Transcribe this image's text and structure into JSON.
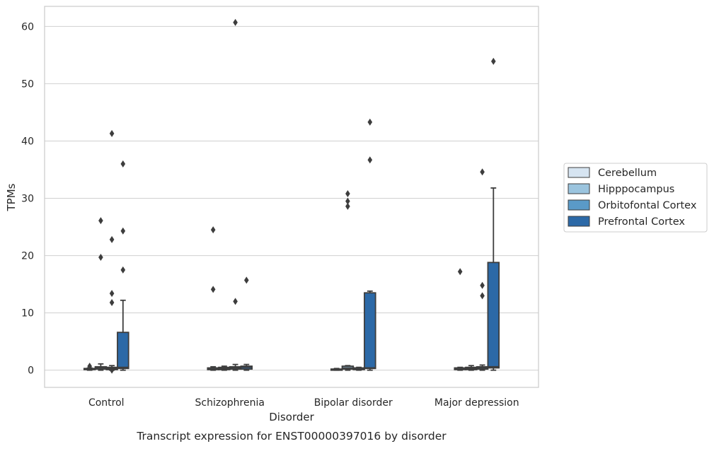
{
  "chart_data": {
    "type": "box",
    "xlabel": "Disorder",
    "ylabel": "TPMs",
    "caption": "Transcript expression for ENST00000397016 by disorder",
    "categories": [
      "Control",
      "Schizophrenia",
      "Bipolar disorder",
      "Major depression"
    ],
    "ylim": [
      -3,
      63.5
    ],
    "yticks": [
      0,
      10,
      20,
      30,
      40,
      50,
      60
    ],
    "grid": "horizontal",
    "legend_placement": "right",
    "series": [
      {
        "name": "Cerebellum",
        "color": "#d6e4f1",
        "boxes": [
          {
            "q1": 0.1,
            "median": 0.2,
            "q3": 0.3,
            "whisker_low": 0.0,
            "whisker_high": 0.4,
            "outliers": [
              0.7
            ]
          },
          {
            "q1": 0.1,
            "median": 0.2,
            "q3": 0.4,
            "whisker_low": 0.0,
            "whisker_high": 0.6,
            "outliers": [
              14.1,
              24.5
            ]
          },
          {
            "q1": 0.0,
            "median": 0.1,
            "q3": 0.2,
            "whisker_low": 0.0,
            "whisker_high": 0.3,
            "outliers": []
          },
          {
            "q1": 0.1,
            "median": 0.2,
            "q3": 0.4,
            "whisker_low": 0.0,
            "whisker_high": 0.5,
            "outliers": [
              17.2
            ]
          }
        ]
      },
      {
        "name": "Hipppocampus",
        "color": "#9bc4de",
        "boxes": [
          {
            "q1": 0.2,
            "median": 0.4,
            "q3": 0.6,
            "whisker_low": 0.0,
            "whisker_high": 1.1,
            "outliers": [
              19.7,
              26.1
            ]
          },
          {
            "q1": 0.1,
            "median": 0.3,
            "q3": 0.5,
            "whisker_low": 0.0,
            "whisker_high": 0.7,
            "outliers": []
          },
          {
            "q1": 0.2,
            "median": 0.4,
            "q3": 0.7,
            "whisker_low": 0.0,
            "whisker_high": 0.8,
            "outliers": [
              28.6,
              29.5,
              30.8
            ]
          },
          {
            "q1": 0.1,
            "median": 0.3,
            "q3": 0.5,
            "whisker_low": 0.0,
            "whisker_high": 0.8,
            "outliers": []
          }
        ]
      },
      {
        "name": "Orbitofontal Cortex",
        "color": "#5a9ac8",
        "boxes": [
          {
            "q1": 0.1,
            "median": 0.3,
            "q3": 0.5,
            "whisker_low": 0.0,
            "whisker_high": 0.8,
            "outliers": [
              0.0,
              11.8,
              13.4,
              22.8,
              41.3
            ]
          },
          {
            "q1": 0.2,
            "median": 0.4,
            "q3": 0.6,
            "whisker_low": 0.0,
            "whisker_high": 1.0,
            "outliers": [
              12.0,
              60.7
            ]
          },
          {
            "q1": 0.1,
            "median": 0.2,
            "q3": 0.4,
            "whisker_low": 0.0,
            "whisker_high": 0.5,
            "outliers": []
          },
          {
            "q1": 0.2,
            "median": 0.4,
            "q3": 0.6,
            "whisker_low": 0.0,
            "whisker_high": 0.9,
            "outliers": [
              13.0,
              14.8,
              34.6
            ]
          }
        ]
      },
      {
        "name": "Prefrontal Cortex",
        "color": "#2c69a7",
        "boxes": [
          {
            "q1": 0.3,
            "median": 0.5,
            "q3": 6.6,
            "whisker_low": 0.0,
            "whisker_high": 12.2,
            "outliers": [
              17.5,
              24.3,
              36.0
            ]
          },
          {
            "q1": 0.2,
            "median": 0.5,
            "q3": 0.7,
            "whisker_low": 0.0,
            "whisker_high": 1.0,
            "outliers": [
              15.7
            ]
          },
          {
            "q1": 0.3,
            "median": 0.4,
            "q3": 13.5,
            "whisker_low": 0.0,
            "whisker_high": 13.8,
            "outliers": [
              36.7,
              43.3
            ]
          },
          {
            "q1": 0.4,
            "median": 0.6,
            "q3": 18.8,
            "whisker_low": 0.0,
            "whisker_high": 31.8,
            "outliers": [
              53.9
            ]
          }
        ]
      }
    ]
  }
}
